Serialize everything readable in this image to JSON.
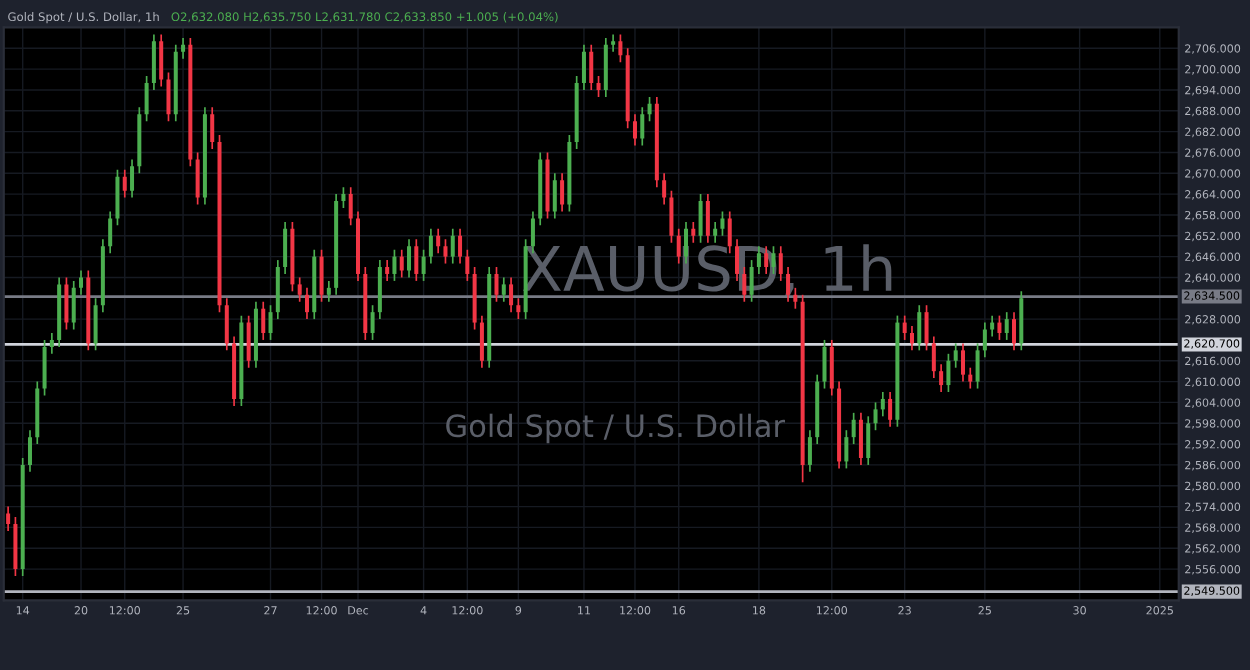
{
  "chart_data": {
    "type": "candlestick",
    "title": "Gold Spot / U.S. Dollar, 1h",
    "subtitle": "O2,632.080 H2,635.750 L2,631.780 C2,633.850 +1.005 (+0.04%)",
    "annotations": [
      "XAUUSD, 1h",
      "Gold Spot / U.S. Dollar"
    ],
    "categories": [
      null,
      null,
      "14",
      null,
      null,
      null,
      null,
      null,
      null,
      null,
      "20",
      null,
      null,
      null,
      null,
      null,
      "12:00",
      null,
      null,
      null,
      null,
      null,
      null,
      null,
      "25",
      null,
      null,
      null,
      null,
      null,
      null,
      null,
      null,
      null,
      null,
      null,
      "27",
      null,
      null,
      null,
      null,
      null,
      null,
      "12:00",
      null,
      null,
      null,
      null,
      "Dec",
      null,
      null,
      null,
      null,
      null,
      null,
      null,
      null,
      "4",
      null,
      null,
      null,
      null,
      null,
      "12:00",
      null,
      null,
      null,
      null,
      null,
      null,
      "9",
      null,
      null,
      null,
      null,
      null,
      null,
      null,
      null,
      "11",
      null,
      null,
      null,
      null,
      null,
      null,
      "12:00",
      null,
      null,
      null,
      null,
      null,
      "16",
      null,
      null,
      null,
      null,
      null,
      null,
      null,
      null,
      null,
      null,
      "18",
      null,
      null,
      null,
      null,
      null,
      null,
      null,
      null,
      null,
      "12:00",
      null,
      null,
      null,
      null,
      null,
      null,
      null,
      null,
      null,
      "23",
      null,
      null,
      null,
      null,
      null,
      null,
      null,
      null,
      null,
      null,
      "25",
      null,
      null,
      null,
      null,
      null,
      null,
      null,
      null,
      null,
      null,
      null,
      null,
      "30",
      null,
      null,
      null,
      null,
      null,
      null,
      null,
      null,
      null,
      null,
      "2025",
      null,
      null
    ],
    "colors": [
      "#f23645",
      "#f23645",
      "#4caf50",
      "#4caf50",
      "#4caf50",
      "#4caf50",
      "#4caf50",
      "#4caf50",
      "#f23645",
      "#4caf50",
      "#4caf50",
      "#f23645",
      "#4caf50",
      "#4caf50",
      "#4caf50",
      "#4caf50",
      "#f23645",
      "#4caf50",
      "#4caf50",
      "#4caf50",
      "#4caf50",
      "#f23645",
      "#f23645",
      "#4caf50",
      "#4caf50",
      "#f23645",
      "#f23645",
      "#4caf50",
      "#f23645",
      "#f23645",
      "#f23645",
      "#f23645",
      "#4caf50",
      "#f23645",
      "#4caf50",
      "#f23645",
      "#4caf50",
      "#4caf50",
      "#4caf50",
      "#f23645",
      "#f23645",
      "#f23645",
      "#4caf50",
      "#f23645",
      "#4caf50",
      "#4caf50",
      "#4caf50",
      "#f23645",
      "#f23645",
      "#f23645",
      "#4caf50",
      "#4caf50",
      "#f23645",
      "#4caf50",
      "#f23645",
      "#4caf50",
      "#f23645",
      "#4caf50",
      "#4caf50",
      "#f23645",
      "#f23645",
      "#4caf50",
      "#f23645",
      "#f23645",
      "#f23645",
      "#f23645",
      "#4caf50",
      "#f23645",
      "#4caf50",
      "#f23645",
      "#f23645",
      "#4caf50",
      "#4caf50",
      "#4caf50",
      "#f23645",
      "#4caf50",
      "#f23645",
      "#4caf50",
      "#4caf50",
      "#4caf50",
      "#f23645",
      "#f23645",
      "#4caf50",
      "#4caf50",
      "#f23645",
      "#f23645",
      "#f23645",
      "#4caf50",
      "#4caf50",
      "#f23645",
      "#f23645",
      "#f23645",
      "#f23645",
      "#4caf50",
      "#f23645",
      "#4caf50",
      "#f23645",
      "#4caf50",
      "#4caf50",
      "#f23645",
      "#f23645",
      "#f23645",
      "#4caf50",
      "#4caf50",
      "#f23645",
      "#4caf50",
      "#f23645",
      "#f23645",
      "#f23645",
      "#f23645",
      "#4caf50",
      "#4caf50",
      "#4caf50",
      "#f23645",
      "#f23645",
      "#4caf50",
      "#4caf50",
      "#f23645",
      "#4caf50",
      "#4caf50",
      "#4caf50",
      "#f23645",
      "#4caf50",
      "#f23645",
      "#f23645",
      "#4caf50",
      "#f23645",
      "#f23645",
      "#f23645",
      "#4caf50",
      "#4caf50",
      "#f23645",
      "#f23645",
      "#4caf50",
      "#4caf50",
      "#4caf50",
      "#f23645",
      "#4caf50",
      "#f23645",
      "#4caf50",
      null,
      null,
      null,
      null,
      null,
      null,
      null,
      null,
      null,
      null,
      null,
      null,
      null,
      null,
      null,
      null,
      null,
      null,
      null,
      null,
      null
    ],
    "ohlc": [
      [
        2572,
        2574,
        2567,
        2569
      ],
      [
        2569,
        2571,
        2554,
        2556
      ],
      [
        2556,
        2588,
        2554,
        2586
      ],
      [
        2586,
        2596,
        2584,
        2594
      ],
      [
        2594,
        2610,
        2592,
        2608
      ],
      [
        2608,
        2622,
        2606,
        2620
      ],
      [
        2620,
        2624,
        2618,
        2622
      ],
      [
        2622,
        2640,
        2620,
        2638
      ],
      [
        2638,
        2640,
        2625,
        2627
      ],
      [
        2627,
        2639,
        2625,
        2637
      ],
      [
        2637,
        2642,
        2635,
        2640
      ],
      [
        2640,
        2642,
        2619,
        2621
      ],
      [
        2621,
        2634,
        2619,
        2632
      ],
      [
        2632,
        2651,
        2630,
        2649
      ],
      [
        2649,
        2659,
        2647,
        2657
      ],
      [
        2657,
        2671,
        2655,
        2669
      ],
      [
        2669,
        2671,
        2663,
        2665
      ],
      [
        2665,
        2674,
        2663,
        2672
      ],
      [
        2672,
        2689,
        2670,
        2687
      ],
      [
        2687,
        2698,
        2685,
        2696
      ],
      [
        2696,
        2710,
        2694,
        2708
      ],
      [
        2708,
        2710,
        2695,
        2697
      ],
      [
        2697,
        2699,
        2685,
        2687
      ],
      [
        2687,
        2707,
        2685,
        2705
      ],
      [
        2705,
        2709,
        2703,
        2707
      ],
      [
        2707,
        2709,
        2672,
        2674
      ],
      [
        2674,
        2676,
        2661,
        2663
      ],
      [
        2663,
        2689,
        2661,
        2687
      ],
      [
        2687,
        2689,
        2677,
        2679
      ],
      [
        2679,
        2681,
        2630,
        2632
      ],
      [
        2632,
        2634,
        2619,
        2621
      ],
      [
        2621,
        2623,
        2603,
        2605
      ],
      [
        2605,
        2629,
        2603,
        2627
      ],
      [
        2627,
        2629,
        2614,
        2616
      ],
      [
        2616,
        2633,
        2614,
        2631
      ],
      [
        2631,
        2633,
        2622,
        2624
      ],
      [
        2624,
        2632,
        2622,
        2630
      ],
      [
        2630,
        2645,
        2628,
        2643
      ],
      [
        2643,
        2656,
        2641,
        2654
      ],
      [
        2654,
        2656,
        2636,
        2638
      ],
      [
        2638,
        2640,
        2633,
        2635
      ],
      [
        2635,
        2637,
        2628,
        2630
      ],
      [
        2630,
        2648,
        2628,
        2646
      ],
      [
        2646,
        2648,
        2633,
        2635
      ],
      [
        2635,
        2639,
        2633,
        2637
      ],
      [
        2637,
        2664,
        2635,
        2662
      ],
      [
        2662,
        2666,
        2660,
        2664
      ],
      [
        2664,
        2666,
        2655,
        2657
      ],
      [
        2657,
        2659,
        2639,
        2641
      ],
      [
        2641,
        2643,
        2622,
        2624
      ],
      [
        2624,
        2632,
        2622,
        2630
      ],
      [
        2630,
        2645,
        2628,
        2643
      ],
      [
        2643,
        2645,
        2639,
        2641
      ],
      [
        2641,
        2648,
        2639,
        2646
      ],
      [
        2646,
        2648,
        2640,
        2642
      ],
      [
        2642,
        2651,
        2640,
        2649
      ],
      [
        2649,
        2651,
        2639,
        2641
      ],
      [
        2641,
        2648,
        2639,
        2646
      ],
      [
        2646,
        2654,
        2644,
        2652
      ],
      [
        2652,
        2654,
        2647,
        2649
      ],
      [
        2649,
        2651,
        2644,
        2646
      ],
      [
        2646,
        2654,
        2644,
        2652
      ],
      [
        2652,
        2654,
        2644,
        2646
      ],
      [
        2646,
        2648,
        2639,
        2641
      ],
      [
        2641,
        2643,
        2625,
        2627
      ],
      [
        2627,
        2629,
        2614,
        2616
      ],
      [
        2616,
        2643,
        2614,
        2641
      ],
      [
        2641,
        2643,
        2633,
        2635
      ],
      [
        2635,
        2640,
        2633,
        2638
      ],
      [
        2638,
        2640,
        2630,
        2632
      ],
      [
        2632,
        2634,
        2628,
        2630
      ],
      [
        2630,
        2651,
        2628,
        2649
      ],
      [
        2649,
        2659,
        2647,
        2657
      ],
      [
        2657,
        2676,
        2655,
        2674
      ],
      [
        2674,
        2676,
        2657,
        2659
      ],
      [
        2659,
        2670,
        2657,
        2668
      ],
      [
        2668,
        2670,
        2659,
        2661
      ],
      [
        2661,
        2681,
        2659,
        2679
      ],
      [
        2679,
        2698,
        2677,
        2696
      ],
      [
        2696,
        2707,
        2694,
        2705
      ],
      [
        2705,
        2707,
        2694,
        2696
      ],
      [
        2696,
        2698,
        2692,
        2694
      ],
      [
        2694,
        2709,
        2692,
        2707
      ],
      [
        2707,
        2710,
        2705,
        2708
      ],
      [
        2708,
        2710,
        2702,
        2704
      ],
      [
        2704,
        2706,
        2683,
        2685
      ],
      [
        2685,
        2687,
        2678,
        2680
      ],
      [
        2680,
        2689,
        2678,
        2687
      ],
      [
        2687,
        2692,
        2685,
        2690
      ],
      [
        2690,
        2692,
        2666,
        2668
      ],
      [
        2668,
        2670,
        2661,
        2663
      ],
      [
        2663,
        2665,
        2650,
        2652
      ],
      [
        2652,
        2654,
        2644,
        2646
      ],
      [
        2646,
        2656,
        2644,
        2654
      ],
      [
        2654,
        2656,
        2650,
        2652
      ],
      [
        2652,
        2664,
        2650,
        2662
      ],
      [
        2662,
        2664,
        2650,
        2652
      ],
      [
        2652,
        2656,
        2650,
        2654
      ],
      [
        2654,
        2659,
        2652,
        2657
      ],
      [
        2657,
        2659,
        2647,
        2649
      ],
      [
        2649,
        2651,
        2639,
        2641
      ],
      [
        2641,
        2643,
        2633,
        2635
      ],
      [
        2635,
        2645,
        2633,
        2643
      ],
      [
        2643,
        2649,
        2641,
        2647
      ],
      [
        2647,
        2649,
        2641,
        2643
      ],
      [
        2643,
        2649,
        2641,
        2647
      ],
      [
        2647,
        2649,
        2639,
        2641
      ],
      [
        2641,
        2643,
        2633,
        2635
      ],
      [
        2635,
        2637,
        2631,
        2633
      ],
      [
        2633,
        2635,
        2581,
        2586
      ],
      [
        2586,
        2596,
        2584,
        2594
      ],
      [
        2594,
        2612,
        2592,
        2610
      ],
      [
        2610,
        2622,
        2608,
        2620
      ],
      [
        2620,
        2622,
        2606,
        2608
      ],
      [
        2608,
        2610,
        2585,
        2587
      ],
      [
        2587,
        2596,
        2585,
        2594
      ],
      [
        2594,
        2601,
        2592,
        2599
      ],
      [
        2599,
        2601,
        2586,
        2588
      ],
      [
        2588,
        2600,
        2586,
        2598
      ],
      [
        2598,
        2604,
        2596,
        2602
      ],
      [
        2602,
        2607,
        2600,
        2605
      ],
      [
        2605,
        2607,
        2597,
        2599
      ],
      [
        2599,
        2629,
        2597,
        2627
      ],
      [
        2627,
        2629,
        2622,
        2624
      ],
      [
        2624,
        2626,
        2619,
        2621
      ],
      [
        2621,
        2632,
        2619,
        2630
      ],
      [
        2630,
        2632,
        2619,
        2621
      ],
      [
        2621,
        2623,
        2611,
        2613
      ],
      [
        2613,
        2615,
        2607,
        2609
      ],
      [
        2609,
        2618,
        2607,
        2616
      ],
      [
        2616,
        2621,
        2614,
        2619
      ],
      [
        2619,
        2621,
        2610,
        2612
      ],
      [
        2612,
        2614,
        2608,
        2610
      ],
      [
        2610,
        2621,
        2608,
        2619
      ],
      [
        2619,
        2627,
        2617,
        2625
      ],
      [
        2625,
        2629,
        2623,
        2627
      ],
      [
        2627,
        2629,
        2622,
        2624
      ],
      [
        2624,
        2630,
        2622,
        2628
      ],
      [
        2628,
        2630,
        2619,
        2621
      ],
      [
        2621,
        2636,
        2619,
        2634
      ],
      null,
      null,
      null,
      null,
      null,
      null,
      null,
      null,
      null,
      null,
      null,
      null,
      null,
      null,
      null,
      null,
      null,
      null,
      null,
      null,
      null
    ],
    "ylim": [
      2547,
      2712
    ],
    "yticks": [
      {
        "value": 2556,
        "label": "2,556.000"
      },
      {
        "value": 2562,
        "label": "2,562.000"
      },
      {
        "value": 2568,
        "label": "2,568.000"
      },
      {
        "value": 2574,
        "label": "2,574.000"
      },
      {
        "value": 2580,
        "label": "2,580.000"
      },
      {
        "value": 2586,
        "label": "2,586.000"
      },
      {
        "value": 2592,
        "label": "2,592.000"
      },
      {
        "value": 2598,
        "label": "2,598.000"
      },
      {
        "value": 2604,
        "label": "2,604.000"
      },
      {
        "value": 2610,
        "label": "2,610.000"
      },
      {
        "value": 2616,
        "label": "2,616.000"
      },
      {
        "value": 2628,
        "label": "2,628.000"
      },
      {
        "value": 2640,
        "label": "2,640.000"
      },
      {
        "value": 2646,
        "label": "2,646.000"
      },
      {
        "value": 2652,
        "label": "2,652.000"
      },
      {
        "value": 2658,
        "label": "2,658.000"
      },
      {
        "value": 2664,
        "label": "2,664.000"
      },
      {
        "value": 2670,
        "label": "2,670.000"
      },
      {
        "value": 2676,
        "label": "2,676.000"
      },
      {
        "value": 2682,
        "label": "2,682.000"
      },
      {
        "value": 2688,
        "label": "2,688.000"
      },
      {
        "value": 2694,
        "label": "2,694.000"
      },
      {
        "value": 2700,
        "label": "2,700.000"
      },
      {
        "value": 2706,
        "label": "2,706.000"
      }
    ],
    "ref_lines": [
      {
        "axis": "y",
        "value": 2634.5,
        "label": "2,634.500",
        "color": "#787b86"
      },
      {
        "axis": "y",
        "value": 2620.7,
        "label": "2,620.700",
        "color": "#d1d4dc"
      },
      {
        "axis": "y",
        "value": 2549.5,
        "label": "2,549.500",
        "color": "#b2b5be"
      }
    ],
    "grid": true
  }
}
